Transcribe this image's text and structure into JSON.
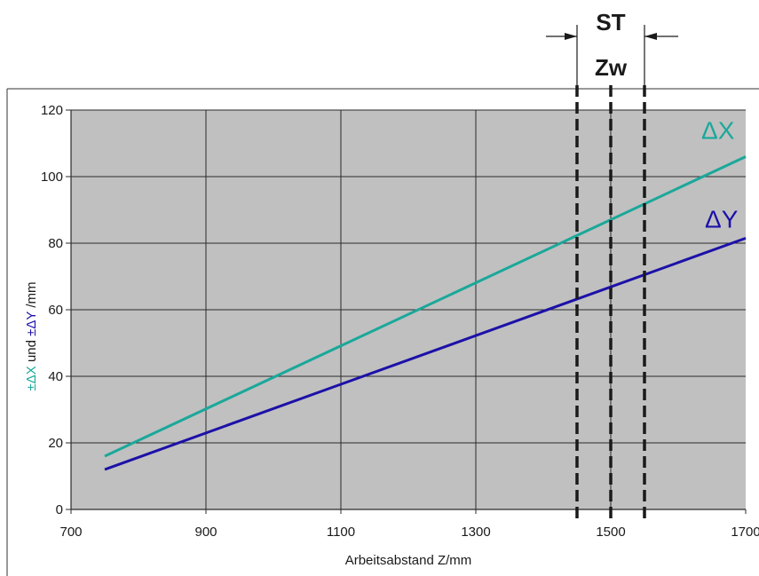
{
  "chart_data": {
    "type": "line",
    "xlabel": "Arbeitsabstand Z/mm",
    "ylabel_parts": [
      "±ΔX",
      " und ",
      "±ΔY",
      " /mm"
    ],
    "xlim": [
      700,
      1700
    ],
    "ylim": [
      0,
      120
    ],
    "x_ticks": [
      700,
      900,
      1100,
      1300,
      1500,
      1700
    ],
    "x_tick_labels": [
      "700",
      "900",
      "1100",
      "1300",
      "1500",
      "1700"
    ],
    "y_ticks": [
      0,
      20,
      40,
      60,
      80,
      100,
      120
    ],
    "y_tick_labels": [
      "0",
      "20",
      "40",
      "60",
      "80",
      "100",
      "120"
    ],
    "grid": true,
    "series": [
      {
        "name": "ΔX",
        "color": "#1aa89a",
        "x": [
          750,
          1700
        ],
        "y": [
          16,
          106
        ]
      },
      {
        "name": "ΔY",
        "color": "#1c11a8",
        "x": [
          750,
          1700
        ],
        "y": [
          12,
          81.5
        ]
      }
    ],
    "markers": {
      "st_label": "ST",
      "zw_label": "Zw",
      "x_values": [
        1450,
        1500,
        1550
      ]
    }
  },
  "colors": {
    "plot_background": "#c0c0c0",
    "grid": "#2a2a2a",
    "marker_lines": "#1a1a1a"
  }
}
